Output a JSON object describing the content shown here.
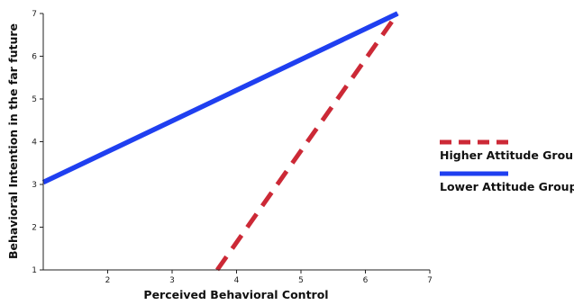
{
  "chart_data": {
    "type": "line",
    "xlabel": "Perceived Behavioral Control",
    "ylabel": "Behavioral Intention in the far future",
    "xlim": [
      1,
      7
    ],
    "ylim": [
      1,
      7
    ],
    "x_ticks": [
      "2",
      "3",
      "4",
      "5",
      "6",
      "7"
    ],
    "y_ticks": [
      "1",
      "2",
      "3",
      "4",
      "5",
      "6",
      "7"
    ],
    "legend_position": "right",
    "grid": false,
    "series": [
      {
        "name": "Higher Attitude Group",
        "color": "#cc2936",
        "style": "dashed",
        "x": [
          3.7,
          6.5
        ],
        "y": [
          1.0,
          7.0
        ]
      },
      {
        "name": "Lower Attitude Group",
        "color": "#1f3ff0",
        "style": "solid",
        "x": [
          1.0,
          6.5
        ],
        "y": [
          3.05,
          7.0
        ]
      }
    ]
  }
}
